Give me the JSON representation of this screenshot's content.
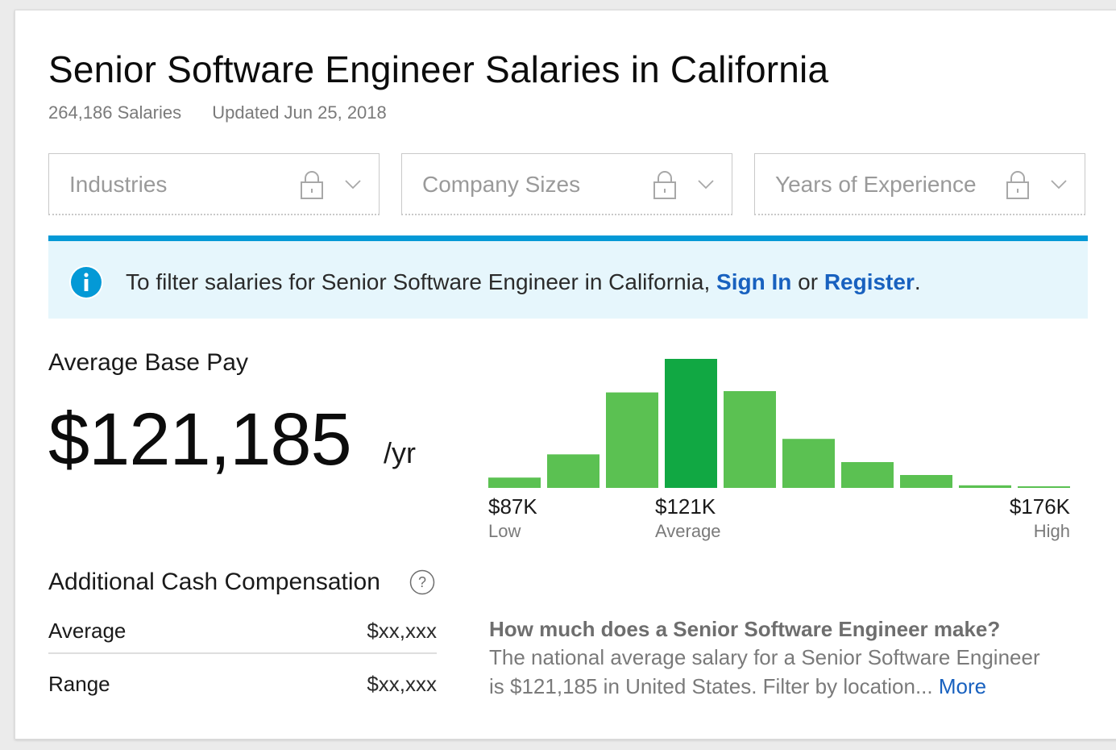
{
  "header": {
    "title": "Senior Software Engineer Salaries in California",
    "salaries_count": "264,186 Salaries",
    "updated": "Updated Jun 25, 2018"
  },
  "filters": [
    {
      "label": "Industries",
      "locked": true
    },
    {
      "label": "Company Sizes",
      "locked": true
    },
    {
      "label": "Years of Experience",
      "locked": true
    }
  ],
  "banner": {
    "text_before": "To filter salaries for Senior Software Engineer in California, ",
    "sign_in": "Sign In",
    "text_or": " or ",
    "register": "Register",
    "text_after": "."
  },
  "base_pay": {
    "label": "Average Base Pay",
    "value": "$121,185",
    "unit": "/yr"
  },
  "chart_data": {
    "type": "bar",
    "values": [
      8,
      26,
      74,
      100,
      75,
      38,
      20,
      10,
      2,
      1
    ],
    "highlight_index": 3,
    "colors": {
      "normal": "#5bc152",
      "highlight": "#11a843"
    },
    "ticks": [
      {
        "value": "$87K",
        "caption": "Low",
        "align": "left",
        "bar": 0
      },
      {
        "value": "$121K",
        "caption": "Average",
        "align": "left",
        "bar": 3
      },
      {
        "value": "$176K",
        "caption": "High",
        "align": "right",
        "bar": 9
      }
    ]
  },
  "additional_comp": {
    "title": "Additional Cash Compensation",
    "rows": [
      {
        "label": "Average",
        "value": "$xx,xxx"
      },
      {
        "label": "Range",
        "value": "$xx,xxx"
      }
    ]
  },
  "faq": {
    "question": "How much does a Senior Software Engineer make?",
    "answer_line1": "The national average salary for a Senior Software Engineer",
    "answer_line2": "is $121,185 in United States. Filter by location...",
    "more": "More"
  },
  "colors": {
    "accent_blue": "#0499d6",
    "link_blue": "#1861bf",
    "banner_bg": "#e6f6fc"
  }
}
